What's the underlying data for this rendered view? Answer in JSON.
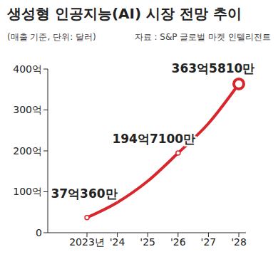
{
  "chart_data": {
    "type": "line",
    "title": "생성형 인공지능(AI) 시장 전망 추이",
    "subtitle": "(매출 기준, 단위: 달러)",
    "source": "자료 : S&P 글로벌 마켓 인텔리전트",
    "categories": [
      "2023년",
      "'24",
      "'25",
      "'26",
      "'27",
      "'28"
    ],
    "values": [
      37.036,
      74,
      126,
      194.71,
      267,
      363.581
    ],
    "value_labels": [
      "37억360만",
      null,
      null,
      "194억7100만",
      null,
      "363억5810만"
    ],
    "data_labels": true,
    "color": "#d9262c",
    "marker": "circle",
    "ylim": [
      0,
      400
    ],
    "yticks": [
      0,
      {
        "value": 100,
        "label": "100억"
      },
      {
        "value": 200,
        "label": "200억"
      },
      {
        "value": 300,
        "label": "300억"
      },
      {
        "value": 400,
        "label": "400억"
      }
    ],
    "grid": false
  }
}
